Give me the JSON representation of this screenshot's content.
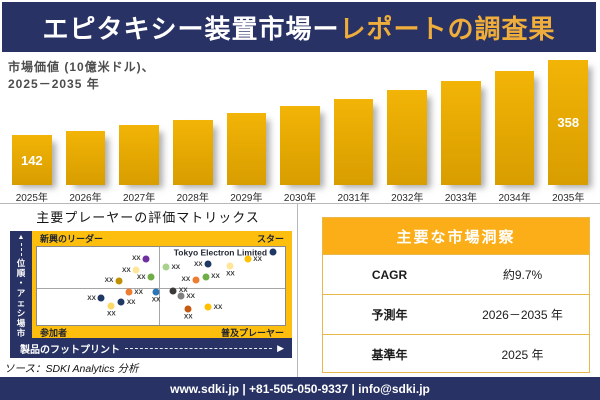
{
  "colors": {
    "navy": "#283264",
    "gold": "#FDBE0D",
    "header-yellow": "#EFAD3B",
    "bar-top": "#F2B406",
    "bar-bottom": "#D89D00",
    "table-header": "#FBAE17",
    "table-border": "#E8B84E"
  },
  "header": {
    "title_white": "エピタキシー装置市場ー",
    "title_yellow": "レポートの調査果"
  },
  "chart": {
    "subtitle_line1": "市場価値 (10億米ドル)、",
    "subtitle_line2": "2025－2035 年"
  },
  "chart_data": [
    {
      "type": "bar",
      "title": "市場価値 (10億米ドル)、2025－2035 年",
      "categories": [
        "2025年",
        "2026年",
        "2027年",
        "2028年",
        "2029年",
        "2030年",
        "2031年",
        "2032年",
        "2033年",
        "2034年",
        "2035年"
      ],
      "values": [
        142,
        156,
        171,
        187,
        206,
        226,
        247,
        272,
        298,
        327,
        358
      ],
      "ylim": [
        0,
        358
      ],
      "data_labels": {
        "first": 142,
        "last": 358
      },
      "bar_color": "#E8A800",
      "legend": "none",
      "grid": false
    },
    {
      "type": "scatter",
      "title": "主要プレーヤーの評価マトリックス",
      "xlabel": "製品のフットプリント",
      "ylabel": "市場シェア・順位",
      "quadrants": {
        "top_left": "新興のリーダー",
        "top_right": "スター",
        "bottom_left": "参加者",
        "bottom_right": "普及プレーヤー"
      },
      "highlight_company": "Tokyo Electron Limited",
      "points": [
        {
          "x": 44,
          "y": 15,
          "color": "#7030A0",
          "label": "XX",
          "side": "left"
        },
        {
          "x": 40,
          "y": 30,
          "color": "#FFE699",
          "label": "XX",
          "side": "left"
        },
        {
          "x": 33,
          "y": 43,
          "color": "#BF8F00",
          "label": "XX",
          "side": "left"
        },
        {
          "x": 46,
          "y": 39,
          "color": "#70AD47",
          "label": "XX",
          "side": "left"
        },
        {
          "x": 52,
          "y": 26,
          "color": "#A9D18E",
          "label": "XX",
          "side": "right"
        },
        {
          "x": 69,
          "y": 22,
          "color": "#1F3864",
          "label": "XX",
          "side": "left"
        },
        {
          "x": 78,
          "y": 24,
          "color": "#FFE699",
          "label": "XX",
          "side": "below"
        },
        {
          "x": 85,
          "y": 16,
          "color": "#FFC000",
          "label": "XX",
          "side": "right"
        },
        {
          "x": 95,
          "y": 7,
          "color": "#1F3864",
          "label": "Tokyo Electron Limited",
          "side": "left",
          "highlight": true
        },
        {
          "x": 64,
          "y": 42,
          "color": "#ED7D31",
          "label": "XX",
          "side": "left"
        },
        {
          "x": 68,
          "y": 38,
          "color": "#70AD47",
          "label": "XX",
          "side": "right"
        },
        {
          "x": 26,
          "y": 66,
          "color": "#1F3864",
          "label": "XX",
          "side": "left"
        },
        {
          "x": 37,
          "y": 58,
          "color": "#ED7D31",
          "label": "XX",
          "side": "right"
        },
        {
          "x": 48,
          "y": 58,
          "color": "#2E75B6",
          "label": "XX",
          "side": "below"
        },
        {
          "x": 34,
          "y": 71,
          "color": "#203864",
          "label": "XX",
          "side": "right"
        },
        {
          "x": 30,
          "y": 76,
          "color": "#FFD966",
          "label": "XX",
          "side": "below"
        },
        {
          "x": 55,
          "y": 56,
          "color": "#3B3838",
          "label": "XX",
          "side": "right"
        },
        {
          "x": 58,
          "y": 63,
          "color": "#808080",
          "label": "XX",
          "side": "right"
        },
        {
          "x": 61,
          "y": 80,
          "color": "#C55A11",
          "label": "XX",
          "side": "below"
        },
        {
          "x": 69,
          "y": 77,
          "color": "#FFC000",
          "label": "XX",
          "side": "right"
        }
      ]
    },
    {
      "type": "table",
      "title": "主要な市場洞察",
      "rows": [
        [
          "CAGR",
          "約9.7%"
        ],
        [
          "予測年",
          "2026－2035 年"
        ],
        [
          "基準年",
          "2025 年"
        ]
      ]
    }
  ],
  "source": "ソース：SDKI Analytics 分析",
  "footer": "www.sdki.jp | +81-505-050-9337 | info@sdki.jp"
}
